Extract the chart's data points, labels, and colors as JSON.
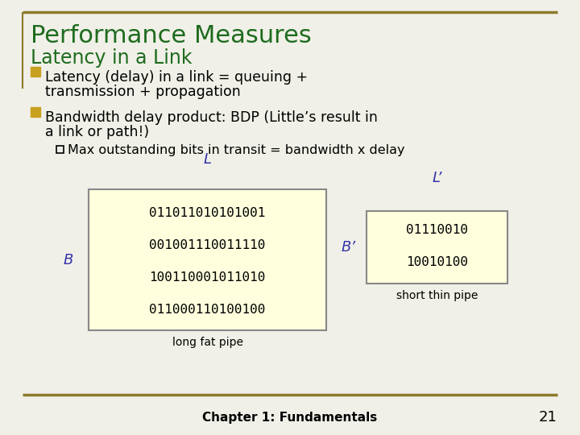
{
  "bg_color": "#f0f0e8",
  "border_color": "#8B7A2A",
  "title_main": "Performance Measures",
  "title_sub": "Latency in a Link",
  "title_main_color": "#1E6B1E",
  "title_sub_color": "#1E6B1E",
  "bullet_color": "#C8A020",
  "bullet1_line1": "Latency (delay) in a link = queuing +",
  "bullet1_line2": "transmission + propagation",
  "bullet2_line1": "Bandwidth delay product: BDP (Little’s result in",
  "bullet2_line2": "a link or path!)",
  "sub_bullet": "Max outstanding bits in transit = bandwidth x delay",
  "box_bg": "#FFFFDD",
  "box_border": "#999999",
  "label_L": "L",
  "label_Lprime": "L’",
  "label_B": "B",
  "label_Bprime": "B’",
  "label_color": "#3333AA",
  "long_fat_rows": [
    "01101101 01010 01",
    "00100111 00111 10",
    "10011000 10110 10",
    "01100011 01001 00"
  ],
  "long_fat_rows_mono": [
    "011011010101001",
    "001001110011110",
    "100110001011010",
    "011000110100100"
  ],
  "short_thin_rows_mono": [
    "01110010",
    "10010100"
  ],
  "long_fat_label": "long fat pipe",
  "short_thin_label": "short thin pipe",
  "footer_text": "Chapter 1: Fundamentals",
  "footer_page": "21",
  "text_color": "#000000"
}
